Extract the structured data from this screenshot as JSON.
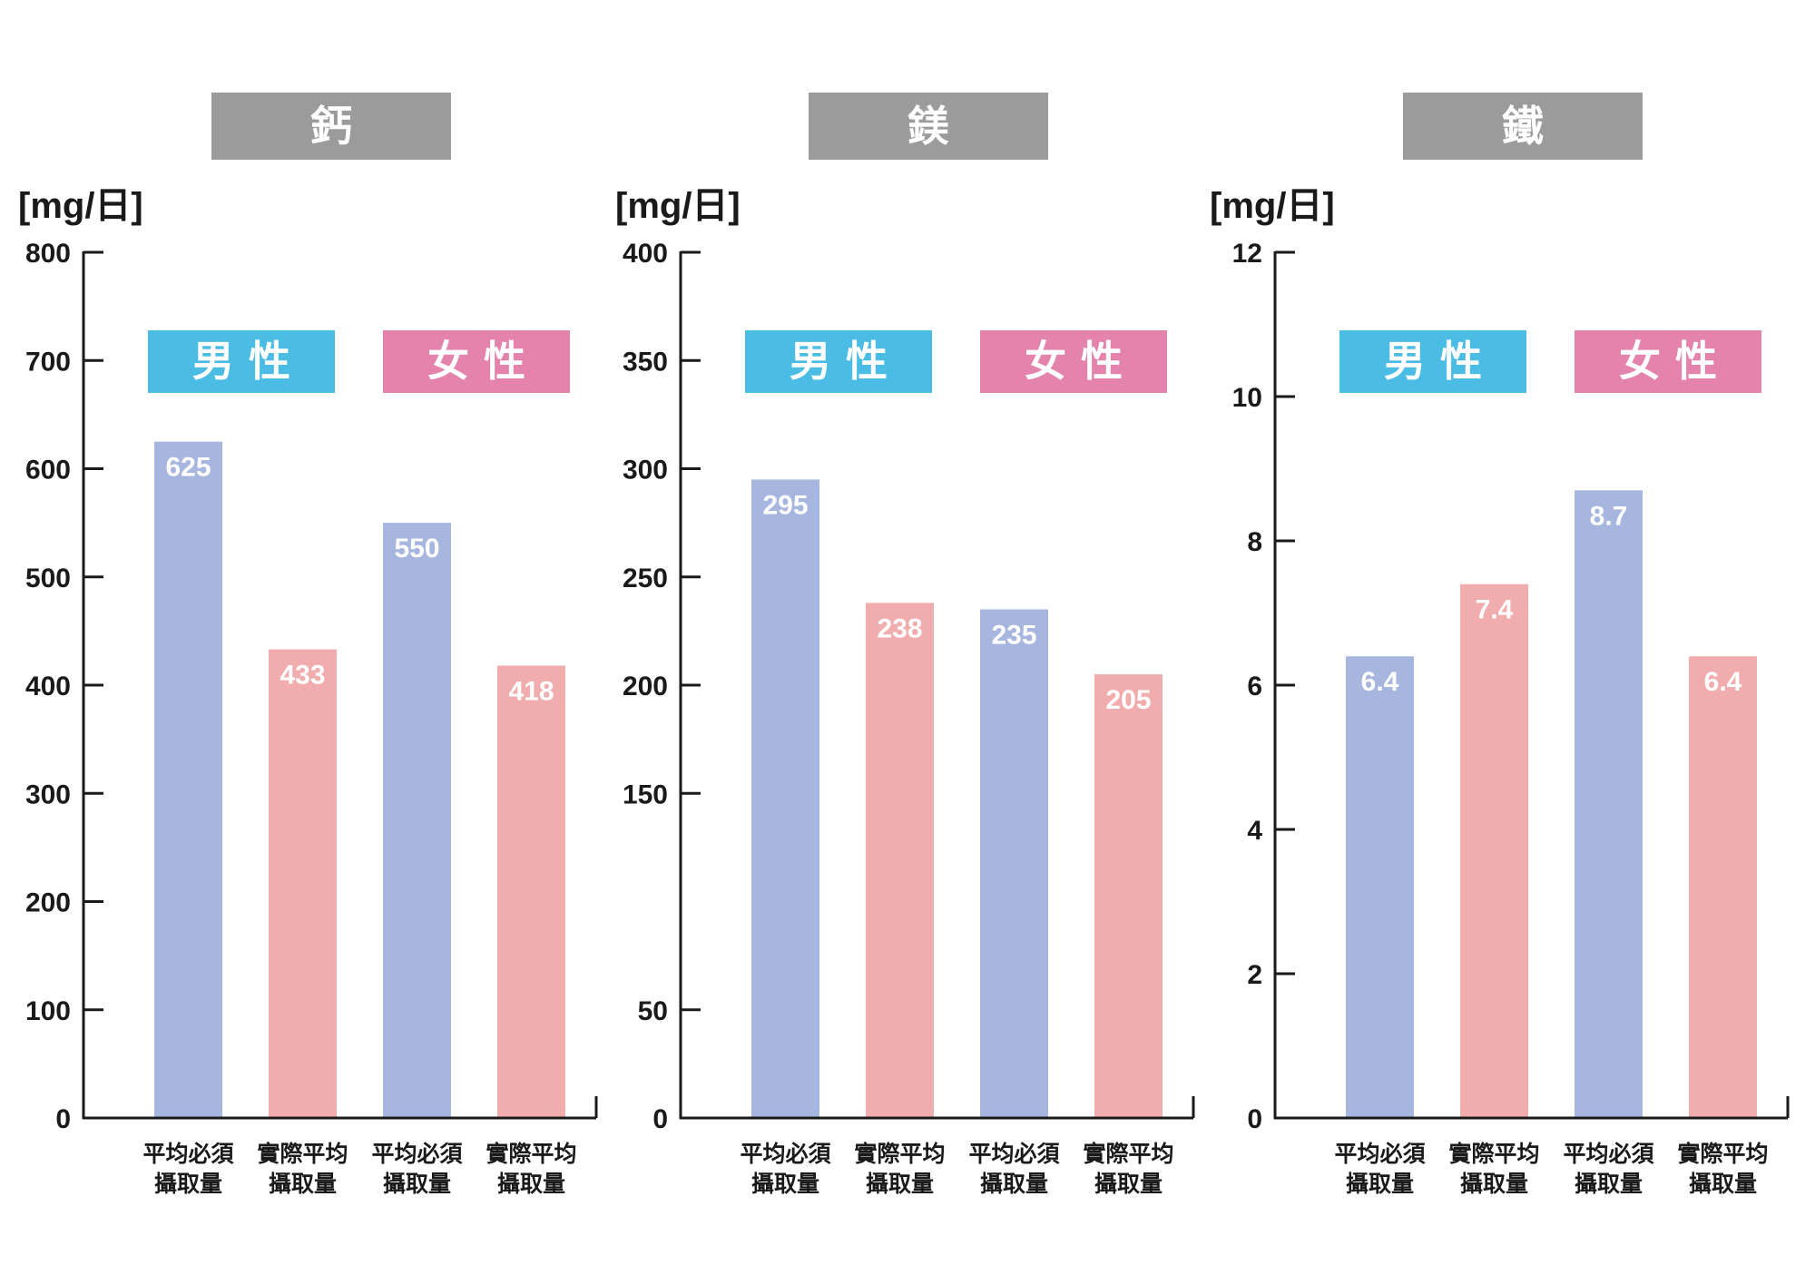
{
  "colors": {
    "title_box": "#9b9b9b",
    "male_legend": "#4bbce4",
    "female_legend": "#e483ac",
    "required_bar": "#a6b6de",
    "actual_bar": "#f1adae",
    "axis": "#1a1a1a",
    "label_text": "#ffffff"
  },
  "legend": {
    "male": "男 性",
    "female": "女 性"
  },
  "chart_data": [
    {
      "type": "bar",
      "title": "鈣",
      "ylabel": "[mg/日]",
      "ylim": [
        0,
        800
      ],
      "yticks": [
        0,
        100,
        200,
        300,
        400,
        500,
        600,
        700,
        800
      ],
      "categories": [
        [
          "平均必須",
          "攝取量"
        ],
        [
          "實際平均",
          "攝取量"
        ],
        [
          "平均必須",
          "攝取量"
        ],
        [
          "實際平均",
          "攝取量"
        ]
      ],
      "groups": [
        "男性",
        "男性",
        "女性",
        "女性"
      ],
      "series_type": [
        "required",
        "actual",
        "required",
        "actual"
      ],
      "values": [
        625,
        433,
        550,
        418
      ],
      "value_labels": [
        "625",
        "433",
        "550",
        "418"
      ]
    },
    {
      "type": "bar",
      "title": "鎂",
      "ylabel": "[mg/日]",
      "ylim": [
        0,
        400
      ],
      "yticks": [
        0,
        50,
        150,
        200,
        250,
        300,
        350,
        400
      ],
      "categories": [
        [
          "平均必須",
          "攝取量"
        ],
        [
          "實際平均",
          "攝取量"
        ],
        [
          "平均必須",
          "攝取量"
        ],
        [
          "實際平均",
          "攝取量"
        ]
      ],
      "groups": [
        "男性",
        "男性",
        "女性",
        "女性"
      ],
      "series_type": [
        "required",
        "actual",
        "required",
        "actual"
      ],
      "values": [
        295,
        238,
        235,
        205
      ],
      "value_labels": [
        "295",
        "238",
        "235",
        "205"
      ]
    },
    {
      "type": "bar",
      "title": "鐵",
      "ylabel": "[mg/日]",
      "ylim": [
        0,
        12
      ],
      "yticks": [
        0,
        2,
        4,
        6,
        8,
        10,
        12
      ],
      "categories": [
        [
          "平均必須",
          "攝取量"
        ],
        [
          "實際平均",
          "攝取量"
        ],
        [
          "平均必須",
          "攝取量"
        ],
        [
          "實際平均",
          "攝取量"
        ]
      ],
      "groups": [
        "男性",
        "男性",
        "女性",
        "女性"
      ],
      "series_type": [
        "required",
        "actual",
        "required",
        "actual"
      ],
      "values": [
        6.4,
        7.4,
        8.7,
        6.4
      ],
      "value_labels": [
        "6.4",
        "7.4",
        "8.7",
        "6.4"
      ]
    }
  ]
}
